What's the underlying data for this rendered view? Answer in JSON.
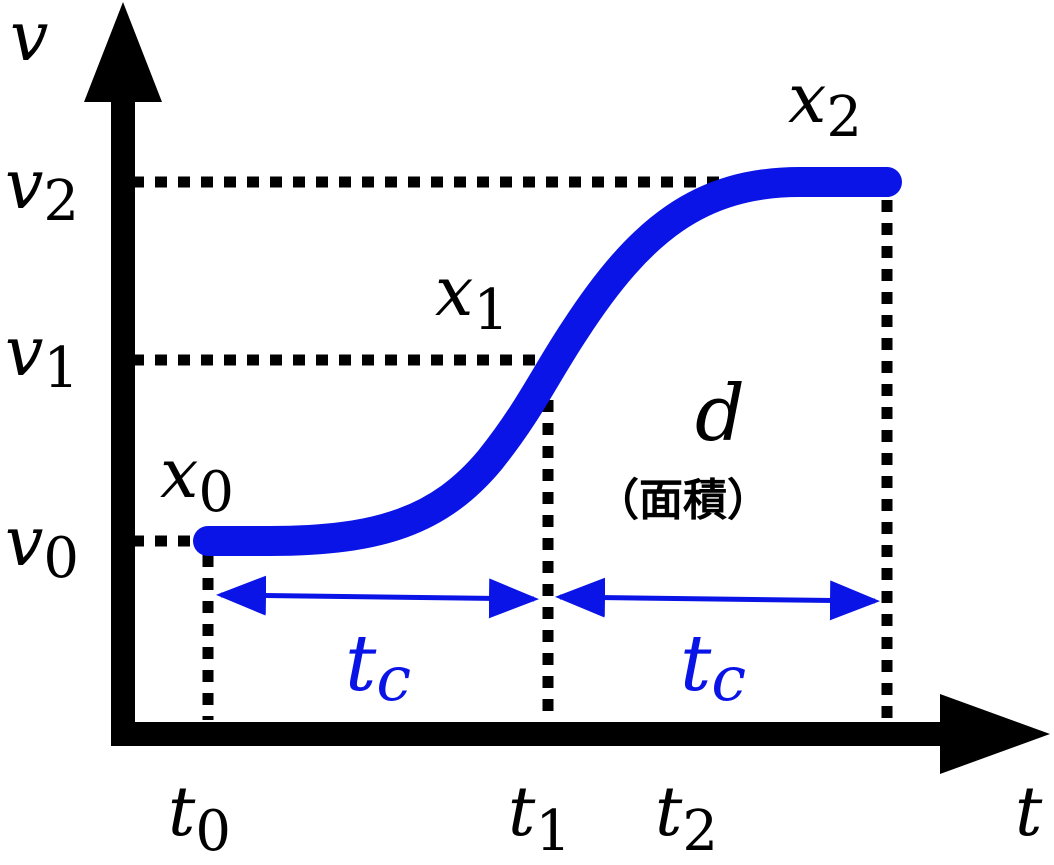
{
  "colors": {
    "axis": "#000000",
    "curve": "#0a14e6",
    "interval": "#0a14e6",
    "guide": "#000000"
  },
  "axes": {
    "y_symbol": "v",
    "x_symbol": "t"
  },
  "y_levels": [
    {
      "symbol": "v",
      "sub": "0"
    },
    {
      "symbol": "v",
      "sub": "1"
    },
    {
      "symbol": "v",
      "sub": "2"
    }
  ],
  "x_levels": [
    {
      "symbol": "t",
      "sub": "0"
    },
    {
      "symbol": "t",
      "sub": "1"
    },
    {
      "symbol": "t",
      "sub": "2"
    }
  ],
  "points": [
    {
      "symbol": "x",
      "sub": "0"
    },
    {
      "symbol": "x",
      "sub": "1"
    },
    {
      "symbol": "x",
      "sub": "2"
    }
  ],
  "intervals": [
    {
      "symbol": "t",
      "sub": "c"
    },
    {
      "symbol": "t",
      "sub": "c"
    }
  ],
  "area": {
    "symbol": "d",
    "note": "（面積）"
  }
}
